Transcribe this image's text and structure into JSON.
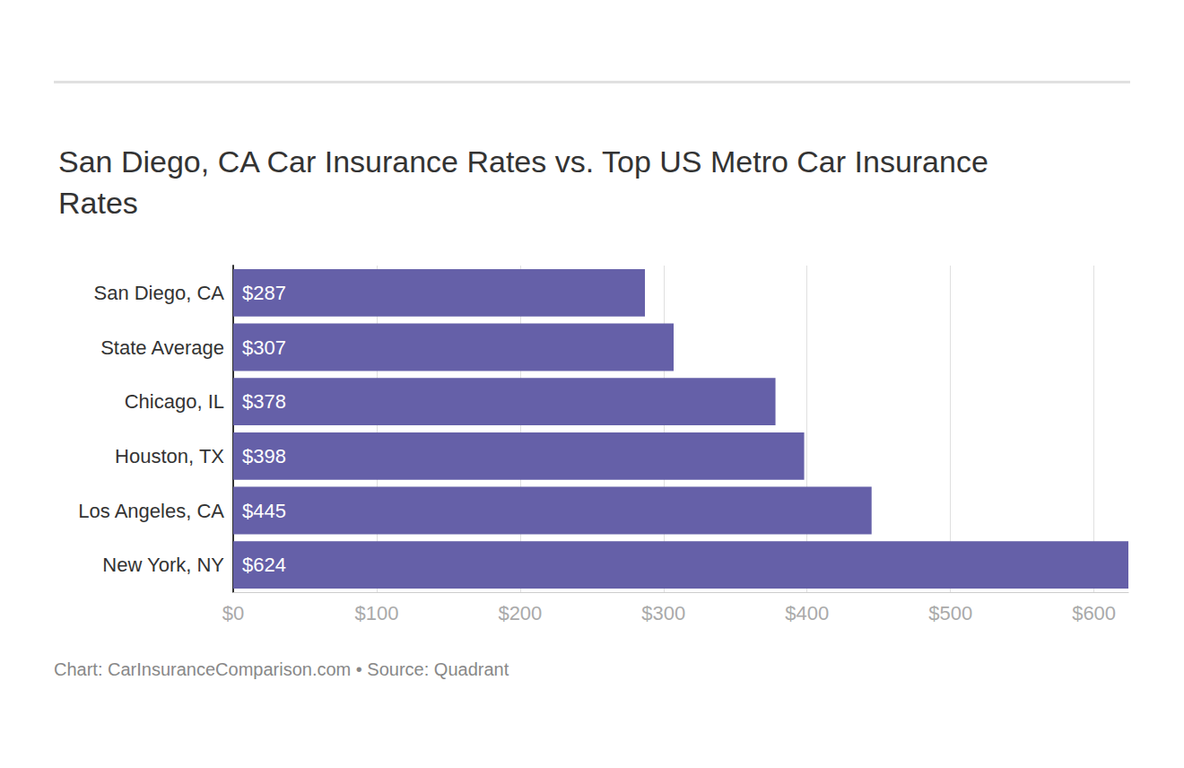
{
  "chart_data": {
    "type": "bar",
    "orientation": "horizontal",
    "title": "San Diego, CA Car Insurance Rates vs. Top US Metro Car Insurance Rates",
    "caption": "Chart: CarInsuranceComparison.com • Source: Quadrant",
    "categories": [
      "San Diego, CA",
      "State Average",
      "Chicago, IL",
      "Houston, TX",
      "Los Angeles, CA",
      "New York, NY"
    ],
    "values": [
      287,
      307,
      378,
      398,
      445,
      624
    ],
    "value_labels": [
      "$287",
      "$307",
      "$378",
      "$398",
      "$445",
      "$624"
    ],
    "data_labels": true,
    "color": "#6560a8",
    "xlim": [
      0,
      624
    ],
    "xticks": [
      {
        "value": 0,
        "label": "$0"
      },
      {
        "value": 100,
        "label": "$100"
      },
      {
        "value": 200,
        "label": "$200"
      },
      {
        "value": 300,
        "label": "$300"
      },
      {
        "value": 400,
        "label": "$400"
      },
      {
        "value": 500,
        "label": "$500"
      },
      {
        "value": 600,
        "label": "$600"
      }
    ],
    "grid": true
  }
}
